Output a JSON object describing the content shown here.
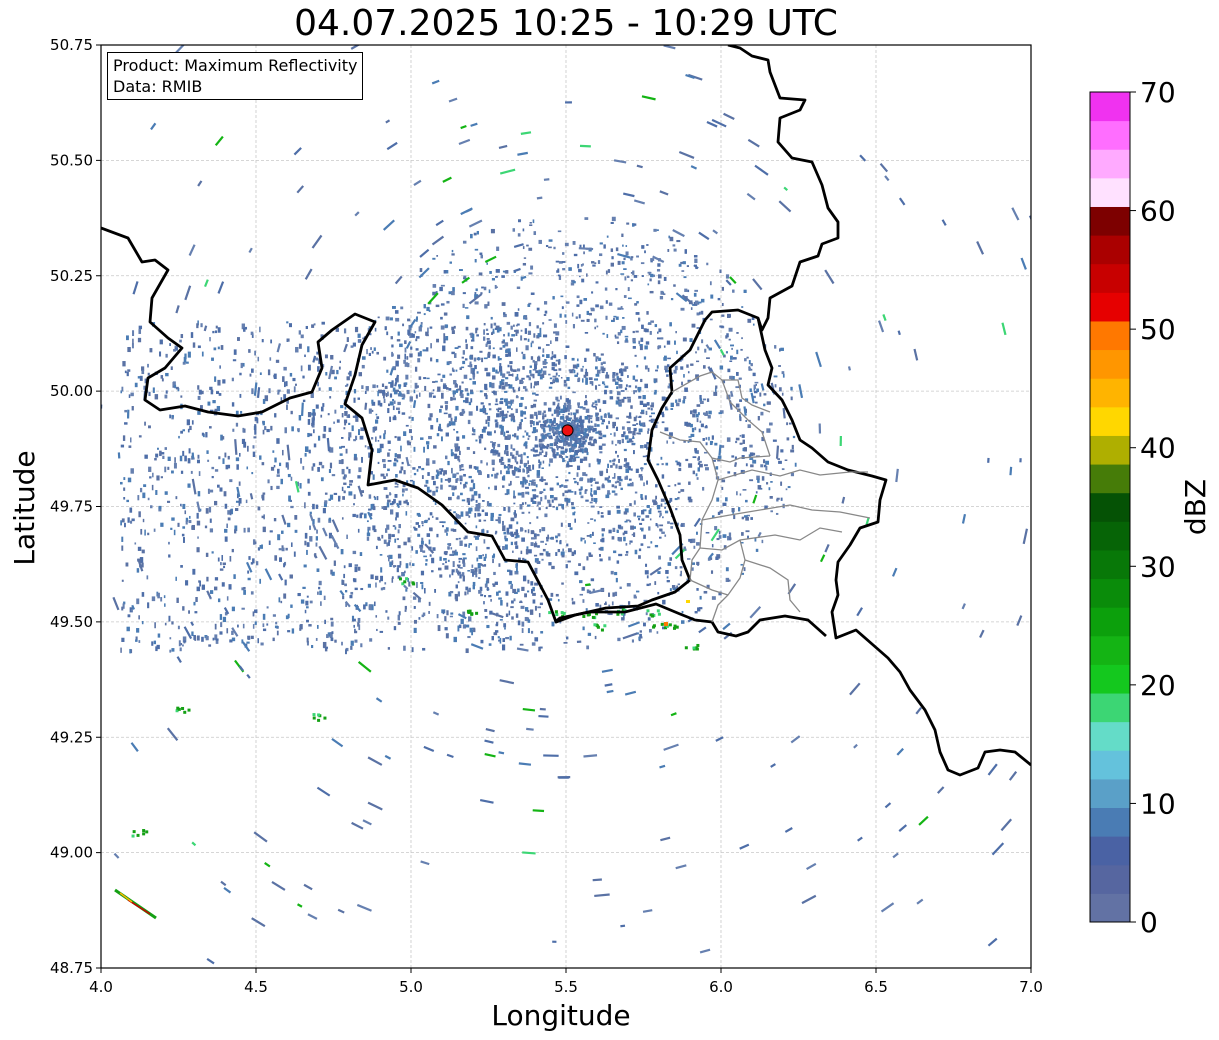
{
  "title": "04.07.2025 10:25 - 10:29 UTC",
  "info_box": {
    "product_line": "Product: Maximum Reflectivity",
    "data_line": "Data: RMIB"
  },
  "axes": {
    "xlabel": "Longitude",
    "ylabel": "Latitude",
    "xlim": [
      4.0,
      7.0
    ],
    "ylim": [
      48.75,
      50.75
    ],
    "xticks": [
      "4.0",
      "4.5",
      "5.0",
      "5.5",
      "6.0",
      "6.5",
      "7.0"
    ],
    "yticks": [
      "48.75",
      "49.00",
      "49.25",
      "49.50",
      "49.75",
      "50.00",
      "50.25",
      "50.50",
      "50.75"
    ],
    "grid": true
  },
  "radar_site": {
    "lon": 5.505,
    "lat": 49.915,
    "marker_color": "#ee1111"
  },
  "colorbar": {
    "label": "dBZ",
    "ticks": [
      "0",
      "10",
      "20",
      "30",
      "40",
      "50",
      "60",
      "70"
    ],
    "range": [
      0,
      70
    ],
    "colors": [
      "#6272a4",
      "#5666a0",
      "#4a62a4",
      "#4a7cb4",
      "#5aa0c8",
      "#64c2dc",
      "#64dcc8",
      "#3cd674",
      "#14c81e",
      "#14b414",
      "#0ca00c",
      "#0a8c0a",
      "#087808",
      "#066406",
      "#055205",
      "#467c08",
      "#afaf00",
      "#ffd700",
      "#ffb400",
      "#ff9600",
      "#ff7800",
      "#e60000",
      "#c80000",
      "#aa0000",
      "#7d0000",
      "#ffe1ff",
      "#ffaaff",
      "#ff6eff",
      "#f032f0"
    ]
  },
  "map_layers": {
    "outer_border_color": "#000000",
    "inner_border_color": "#888888"
  }
}
